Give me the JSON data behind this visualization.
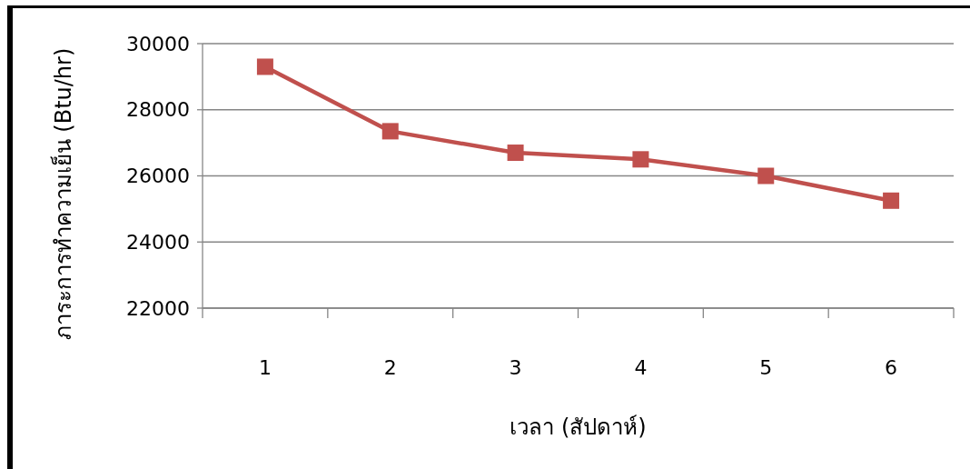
{
  "chart_data": {
    "type": "line",
    "xlabel": "เวลา (สัปดาห์)",
    "ylabel": "ภาระการทำความเย็น (Btu/hr)",
    "categories": [
      "1",
      "2",
      "3",
      "4",
      "5",
      "6"
    ],
    "series": [
      {
        "color": "#c0504d",
        "values": [
          29300,
          27350,
          26700,
          26500,
          26000,
          25250
        ]
      }
    ],
    "ylim": [
      22000,
      30000
    ],
    "yticks": [
      22000,
      24000,
      26000,
      28000,
      30000
    ],
    "grid": "y",
    "marker": "square",
    "line_style": "solid"
  }
}
